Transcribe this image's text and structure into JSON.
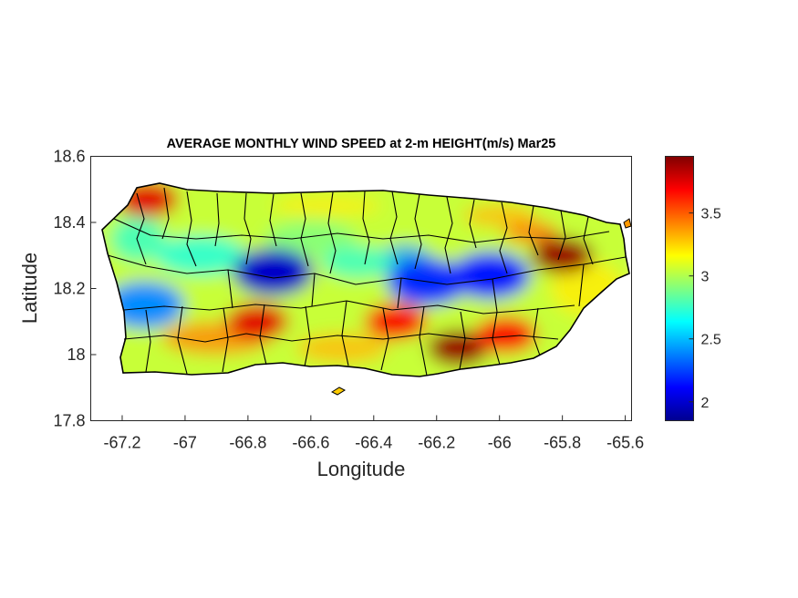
{
  "figure": {
    "title": "AVERAGE MONTHLY WIND SPEED at 2-m HEIGHT(m/s) Mar25",
    "xlabel": "Longitude",
    "ylabel": "Latitude"
  },
  "map": {
    "region": "Puerto Rico",
    "xlim": [
      -67.3,
      -65.58
    ],
    "ylim": [
      17.8,
      18.6
    ],
    "x_ticks": [
      "-67.2",
      "-67",
      "-66.8",
      "-66.6",
      "-66.4",
      "-66.2",
      "-66",
      "-65.8",
      "-65.6"
    ],
    "y_ticks": [
      "18.6",
      "18.4",
      "18.2",
      "18",
      "17.8"
    ],
    "boundary_color": "#000000",
    "frame_color": "#262626"
  },
  "colorbar": {
    "colormap": "jet",
    "range": [
      1.85,
      3.95
    ],
    "ticks": [
      "3.5",
      "3",
      "2.5",
      "2"
    ],
    "stops": [
      "#00008f",
      "#0000ff",
      "#0080ff",
      "#00ffff",
      "#80ff80",
      "#ffff00",
      "#ff8000",
      "#ff0000",
      "#800000"
    ]
  },
  "wind_features": [
    {
      "lon": -67.12,
      "lat": 18.47,
      "value": 3.75,
      "note": "north-west coast high"
    },
    {
      "lon": -66.72,
      "lat": 18.25,
      "value": 2.0,
      "note": "central-west low"
    },
    {
      "lon": -66.23,
      "lat": 18.22,
      "value": 2.2,
      "note": "central low"
    },
    {
      "lon": -66.03,
      "lat": 18.24,
      "value": 2.15,
      "note": "central-east low"
    },
    {
      "lon": -67.13,
      "lat": 18.15,
      "value": 2.4,
      "note": "west low"
    },
    {
      "lon": -65.8,
      "lat": 18.3,
      "value": 3.9,
      "note": "north-east high"
    },
    {
      "lon": -66.13,
      "lat": 18.02,
      "value": 3.9,
      "note": "south coast high"
    },
    {
      "lon": -66.33,
      "lat": 18.1,
      "value": 3.7,
      "note": "south-central high"
    },
    {
      "lon": -66.77,
      "lat": 18.1,
      "value": 3.75,
      "note": "south-west high"
    },
    {
      "lon": -65.98,
      "lat": 18.06,
      "value": 3.7,
      "note": "south-east high"
    }
  ]
}
